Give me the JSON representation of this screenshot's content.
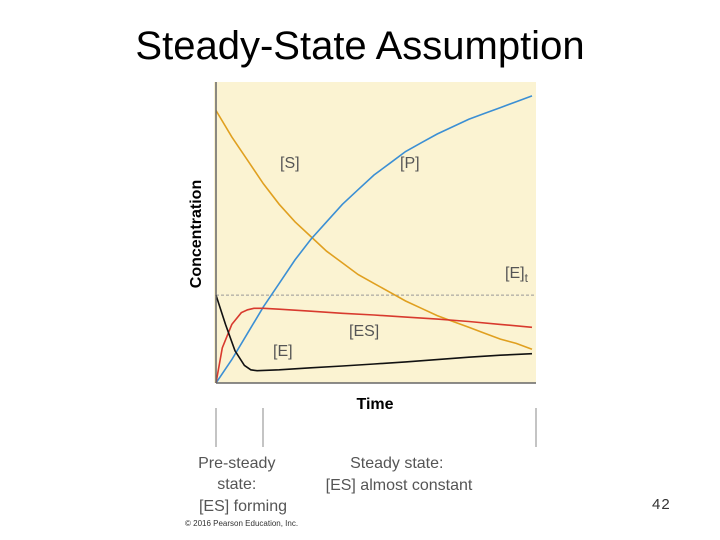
{
  "slide": {
    "title": "Steady-State Assumption",
    "page_number": "42"
  },
  "colors": {
    "plot_background": "#fbf3d2",
    "S": "#e0a020",
    "P": "#3b8fd4",
    "ES": "#d83a2e",
    "E": "#111111",
    "E_total_line": "#999999",
    "label_text": "#555555"
  },
  "chart_data": {
    "type": "line",
    "xlabel": "Time",
    "ylabel": "Concentration",
    "grid": false,
    "legend": "none (curves labeled directly)",
    "xlim": [
      0,
      1
    ],
    "ylim": [
      0,
      1
    ],
    "reference_lines": [
      {
        "name": "[E]t",
        "y": 0.3
      }
    ],
    "series": [
      {
        "name": "[S]",
        "points": [
          [
            0,
            0.93
          ],
          [
            0.05,
            0.84
          ],
          [
            0.1,
            0.76
          ],
          [
            0.15,
            0.68
          ],
          [
            0.2,
            0.61
          ],
          [
            0.25,
            0.55
          ],
          [
            0.3,
            0.5
          ],
          [
            0.35,
            0.45
          ],
          [
            0.4,
            0.41
          ],
          [
            0.45,
            0.37
          ],
          [
            0.5,
            0.34
          ],
          [
            0.55,
            0.31
          ],
          [
            0.6,
            0.28
          ],
          [
            0.65,
            0.255
          ],
          [
            0.7,
            0.23
          ],
          [
            0.75,
            0.21
          ],
          [
            0.8,
            0.19
          ],
          [
            0.85,
            0.17
          ],
          [
            0.9,
            0.15
          ],
          [
            0.95,
            0.135
          ],
          [
            1,
            0.115
          ]
        ]
      },
      {
        "name": "[P]",
        "points": [
          [
            0,
            0
          ],
          [
            0.05,
            0.08
          ],
          [
            0.1,
            0.17
          ],
          [
            0.15,
            0.26
          ],
          [
            0.2,
            0.34
          ],
          [
            0.25,
            0.42
          ],
          [
            0.3,
            0.49
          ],
          [
            0.35,
            0.55
          ],
          [
            0.4,
            0.61
          ],
          [
            0.45,
            0.66
          ],
          [
            0.5,
            0.71
          ],
          [
            0.55,
            0.75
          ],
          [
            0.6,
            0.79
          ],
          [
            0.65,
            0.82
          ],
          [
            0.7,
            0.85
          ],
          [
            0.75,
            0.875
          ],
          [
            0.8,
            0.9
          ],
          [
            0.85,
            0.92
          ],
          [
            0.9,
            0.94
          ],
          [
            0.95,
            0.96
          ],
          [
            1,
            0.98
          ]
        ]
      },
      {
        "name": "[ES]",
        "points": [
          [
            0,
            0
          ],
          [
            0.02,
            0.12
          ],
          [
            0.05,
            0.2
          ],
          [
            0.08,
            0.24
          ],
          [
            0.1,
            0.25
          ],
          [
            0.12,
            0.255
          ],
          [
            0.15,
            0.255
          ],
          [
            0.2,
            0.252
          ],
          [
            0.3,
            0.245
          ],
          [
            0.4,
            0.238
          ],
          [
            0.5,
            0.232
          ],
          [
            0.6,
            0.225
          ],
          [
            0.7,
            0.218
          ],
          [
            0.8,
            0.21
          ],
          [
            0.9,
            0.2
          ],
          [
            1,
            0.19
          ]
        ]
      },
      {
        "name": "[E]",
        "points": [
          [
            0,
            0.3
          ],
          [
            0.03,
            0.2
          ],
          [
            0.06,
            0.11
          ],
          [
            0.09,
            0.06
          ],
          [
            0.11,
            0.045
          ],
          [
            0.13,
            0.042
          ],
          [
            0.2,
            0.045
          ],
          [
            0.3,
            0.052
          ],
          [
            0.4,
            0.058
          ],
          [
            0.5,
            0.065
          ],
          [
            0.6,
            0.072
          ],
          [
            0.7,
            0.08
          ],
          [
            0.8,
            0.088
          ],
          [
            0.9,
            0.095
          ],
          [
            1,
            0.1
          ]
        ]
      }
    ]
  },
  "annotations": {
    "phases": [
      {
        "label_lines": [
          "Pre-steady",
          "state:",
          "[ES] forming"
        ],
        "x_start": 0,
        "x_end": 0.15
      },
      {
        "label_lines": [
          "Steady state:",
          "[ES] almost constant"
        ],
        "x_start": 0.15,
        "x_end": 1
      }
    ],
    "copyright": "© 2016 Pearson Education, Inc."
  }
}
